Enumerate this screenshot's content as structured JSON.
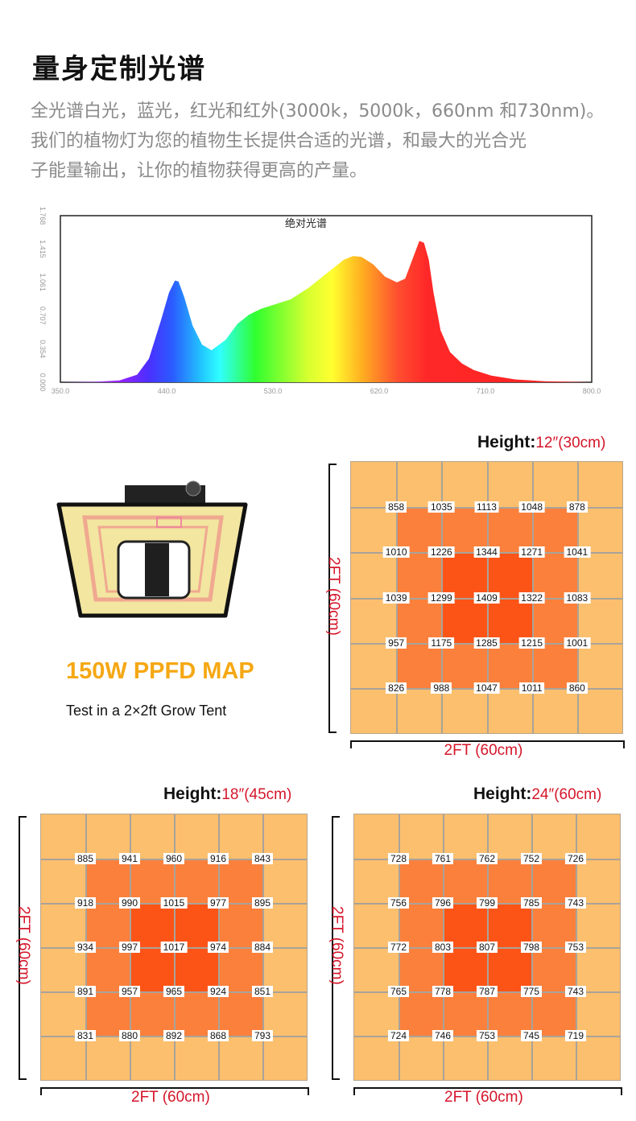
{
  "title": "量身定制光谱",
  "description": [
    "全光谱白光，蓝光，红光和红外(3000k，5000k，660nm 和730nm)。",
    "我们的植物灯为您的植物生长提供合适的光谱，和最大的光合光",
    "子能量输出，让你的植物获得更高的产量。"
  ],
  "chart_data": {
    "type": "area",
    "title": "绝对光谱",
    "xlabel": "",
    "ylabel": "",
    "xlim": [
      350,
      800
    ],
    "ylim": [
      0,
      1.768
    ],
    "xticks": [
      "350.0",
      "440.0",
      "530.0",
      "620.0",
      "710.0",
      "800.0"
    ],
    "yticks": [
      "0.000",
      "0.354",
      "0.707",
      "1.061",
      "1.415",
      "1.768"
    ],
    "x": [
      350,
      380,
      400,
      415,
      425,
      435,
      442,
      447,
      450,
      455,
      462,
      470,
      478,
      490,
      500,
      510,
      520,
      530,
      545,
      560,
      575,
      590,
      598,
      605,
      615,
      625,
      635,
      642,
      648,
      654,
      658,
      662,
      666,
      672,
      680,
      690,
      700,
      715,
      735,
      760,
      800
    ],
    "y": [
      0,
      0.005,
      0.02,
      0.08,
      0.25,
      0.65,
      0.95,
      1.08,
      1.07,
      0.9,
      0.6,
      0.4,
      0.34,
      0.45,
      0.62,
      0.72,
      0.78,
      0.82,
      0.88,
      1.0,
      1.15,
      1.3,
      1.34,
      1.33,
      1.25,
      1.12,
      1.06,
      1.1,
      1.3,
      1.5,
      1.48,
      1.3,
      0.95,
      0.55,
      0.32,
      0.2,
      0.13,
      0.07,
      0.03,
      0.01,
      0
    ]
  },
  "product": {
    "title": "150W PPFD MAP",
    "subtitle": "Test in a 2×2ft Grow Tent"
  },
  "maps": [
    {
      "height_label": "Height:",
      "height_value": "12″(30cm)",
      "side_label": "2FT (60cm)",
      "bottom_label": "2FT (60cm)",
      "values": [
        [
          "858",
          "1035",
          "1113",
          "1048",
          "878"
        ],
        [
          "1010",
          "1226",
          "1344",
          "1271",
          "1041"
        ],
        [
          "1039",
          "1299",
          "1409",
          "1322",
          "1083"
        ],
        [
          "957",
          "1175",
          "1285",
          "1215",
          "1001"
        ],
        [
          "826",
          "988",
          "1047",
          "1011",
          "860"
        ]
      ]
    },
    {
      "height_label": "Height:",
      "height_value": "18″(45cm)",
      "side_label": "2FT (60cm)",
      "bottom_label": "2FT (60cm)",
      "values": [
        [
          "885",
          "941",
          "960",
          "916",
          "843"
        ],
        [
          "918",
          "990",
          "1015",
          "977",
          "895"
        ],
        [
          "934",
          "997",
          "1017",
          "974",
          "884"
        ],
        [
          "891",
          "957",
          "965",
          "924",
          "851"
        ],
        [
          "831",
          "880",
          "892",
          "868",
          "793"
        ]
      ]
    },
    {
      "height_label": "Height:",
      "height_value": "24″(60cm)",
      "side_label": "2FT (60cm)",
      "bottom_label": "2FT (60cm)",
      "values": [
        [
          "728",
          "761",
          "762",
          "752",
          "726"
        ],
        [
          "756",
          "796",
          "799",
          "785",
          "743"
        ],
        [
          "772",
          "803",
          "807",
          "798",
          "753"
        ],
        [
          "765",
          "778",
          "787",
          "775",
          "743"
        ],
        [
          "724",
          "746",
          "753",
          "745",
          "719"
        ]
      ]
    }
  ],
  "colors": {
    "outer": "#fbbf6e",
    "middle": "#fb803c",
    "inner": "#fc5417",
    "accent": "#d5162a",
    "product_title": "#f5a814"
  }
}
